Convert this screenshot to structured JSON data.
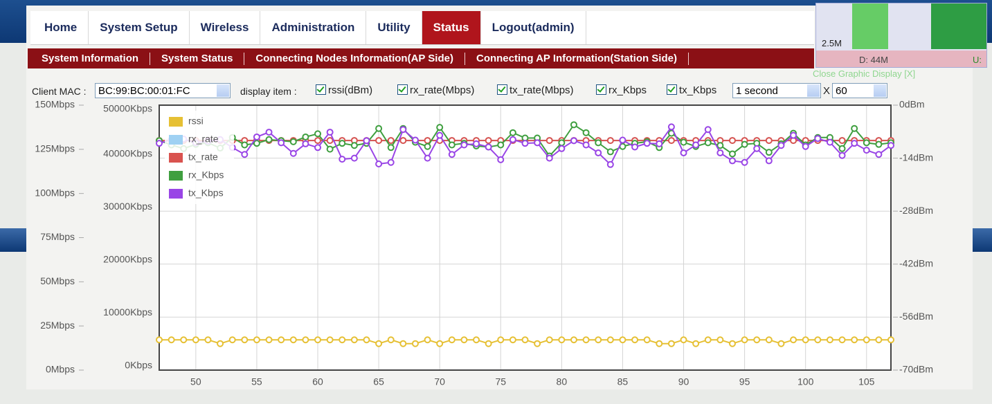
{
  "nav": {
    "tabs": [
      "Home",
      "System Setup",
      "Wireless",
      "Administration",
      "Utility",
      "Status",
      "Logout(admin)"
    ]
  },
  "subnav": {
    "items": [
      "System Information",
      "System Status",
      "Connecting Nodes Information(AP Side)",
      "Connecting AP Information(Station Side)"
    ]
  },
  "widget": {
    "scale": "2.5M",
    "down": "D: 44M",
    "up": "U:",
    "close": "Close Graphic Display [X]"
  },
  "controls": {
    "mac_label": "Client MAC :",
    "mac": "BC:99:BC:00:01:FC",
    "display_label": "display item :",
    "items": [
      "rssi(dBm)",
      "rx_rate(Mbps)",
      "tx_rate(Mbps)",
      "rx_Kbps",
      "tx_Kbps"
    ],
    "interval": "1 second",
    "times": "X",
    "count": "60"
  },
  "chart_data": {
    "type": "line",
    "grid": true,
    "legend": "upper left",
    "x": [
      47,
      48,
      49,
      50,
      51,
      52,
      53,
      54,
      55,
      56,
      57,
      58,
      59,
      60,
      61,
      62,
      63,
      64,
      65,
      66,
      67,
      68,
      69,
      70,
      71,
      72,
      73,
      74,
      75,
      76,
      77,
      78,
      79,
      80,
      81,
      82,
      83,
      84,
      85,
      86,
      87,
      88,
      89,
      90,
      91,
      92,
      93,
      94,
      95,
      96,
      97,
      98,
      99,
      100,
      101,
      102,
      103,
      104,
      105,
      106,
      107
    ],
    "xlim": [
      47,
      107
    ],
    "xticks": [
      50,
      55,
      60,
      65,
      70,
      75,
      80,
      85,
      90,
      95,
      100,
      105
    ],
    "ylim": [
      0,
      150
    ],
    "yticks": [
      {
        "value": 0,
        "label": "0Mbps"
      },
      {
        "value": 25,
        "label": "25Mbps"
      },
      {
        "value": 50,
        "label": "50Mbps"
      },
      {
        "value": 75,
        "label": "75Mbps"
      },
      {
        "value": 100,
        "label": "100Mbps"
      },
      {
        "value": 125,
        "label": "125Mbps"
      },
      {
        "value": 150,
        "label": "150Mbps"
      }
    ],
    "y2lim": [
      0,
      50000
    ],
    "y2ticks": [
      {
        "value": 0,
        "label": "0Kbps"
      },
      {
        "value": 10000,
        "label": "10000Kbps"
      },
      {
        "value": 20000,
        "label": "20000Kbps"
      },
      {
        "value": 30000,
        "label": "30000Kbps"
      },
      {
        "value": 40000,
        "label": "40000Kbps"
      },
      {
        "value": 50000,
        "label": "50000Kbps"
      }
    ],
    "y3lim": [
      -70,
      0
    ],
    "y3ticks": [
      {
        "value": -70,
        "label": "-70dBm"
      },
      {
        "value": -56,
        "label": "-56dBm"
      },
      {
        "value": -42,
        "label": "-42dBm"
      },
      {
        "value": -28,
        "label": "-28dBm"
      },
      {
        "value": -14,
        "label": "-14dBm"
      },
      {
        "value": 0,
        "label": "0dBm"
      }
    ],
    "series": [
      {
        "name": "rssi",
        "color": "#e6c034",
        "axis": "y3",
        "values": [
          -62,
          -62,
          -62,
          -62,
          -62,
          -63,
          -62,
          -62,
          -62,
          -62,
          -62,
          -62,
          -62,
          -62,
          -62,
          -62,
          -62,
          -62,
          -63,
          -62,
          -63,
          -63,
          -62,
          -63,
          -62,
          -62,
          -62,
          -63,
          -62,
          -62,
          -62,
          -63,
          -62,
          -62,
          -62,
          -62,
          -62,
          -62,
          -62,
          -62,
          -62,
          -63,
          -63,
          -62,
          -63,
          -62,
          -62,
          -63,
          -62,
          -62,
          -62,
          -63,
          -62,
          -62,
          -62,
          -62,
          -62,
          -62,
          -62,
          -62,
          -62
        ]
      },
      {
        "name": "rx_rate",
        "color": "#9fd1f3",
        "values": [
          130,
          130,
          130,
          130,
          130,
          130,
          130,
          130,
          130,
          130,
          130,
          130,
          130,
          130,
          130,
          130,
          130,
          130,
          130,
          130,
          130,
          130,
          130,
          130,
          130,
          130,
          130,
          130,
          130,
          130,
          130,
          130,
          130,
          130,
          130,
          130,
          130,
          130,
          130,
          130,
          130,
          130,
          130,
          130,
          130,
          130,
          130,
          130,
          130,
          130,
          130,
          130,
          130,
          130,
          130,
          130,
          130,
          130,
          130,
          130,
          130
        ]
      },
      {
        "name": "tx_rate",
        "color": "#d9534f",
        "values": [
          130,
          130,
          130,
          130,
          130,
          130,
          130,
          130,
          130,
          130,
          130,
          130,
          130,
          130,
          130,
          130,
          130,
          130,
          130,
          130,
          130,
          130,
          130,
          130,
          130,
          130,
          130,
          130,
          130,
          130,
          130,
          130,
          130,
          130,
          130,
          130,
          130,
          130,
          130,
          130,
          130,
          130,
          130,
          130,
          130,
          130,
          130,
          130,
          130,
          130,
          130,
          130,
          130,
          130,
          130,
          130,
          130,
          130,
          130,
          130,
          130
        ]
      },
      {
        "name": "rx_Kbps",
        "color": "#3f9f3f",
        "axis": "y2",
        "values": [
          43300,
          42500,
          41800,
          42600,
          42900,
          41900,
          43900,
          42500,
          42800,
          43500,
          43300,
          43100,
          44000,
          44600,
          41700,
          42800,
          42400,
          42800,
          45600,
          42000,
          45600,
          43000,
          42200,
          45800,
          42500,
          42800,
          42300,
          42100,
          42500,
          44800,
          43800,
          43800,
          40400,
          42900,
          46300,
          44800,
          42900,
          41200,
          42200,
          42800,
          43100,
          42000,
          44700,
          43000,
          42200,
          42900,
          42400,
          40800,
          42600,
          42800,
          41100,
          42700,
          44700,
          42500,
          43900,
          43900,
          41800,
          45600,
          42900,
          42600,
          42900
        ]
      },
      {
        "name": "tx_Kbps",
        "color": "#9945e6",
        "axis": "y2",
        "values": [
          42800,
          43500,
          43600,
          42900,
          43200,
          43500,
          42000,
          40700,
          44000,
          44900,
          42900,
          40900,
          42700,
          42000,
          44900,
          39800,
          40000,
          43300,
          38900,
          39200,
          45400,
          43400,
          40000,
          44300,
          40700,
          42500,
          42700,
          42100,
          39700,
          43500,
          42800,
          42900,
          40000,
          41800,
          43300,
          42500,
          41000,
          38800,
          43400,
          42100,
          42800,
          42700,
          45900,
          41000,
          42500,
          45400,
          41000,
          39500,
          39200,
          41800,
          39500,
          42400,
          44300,
          42200,
          43700,
          43000,
          40500,
          42800,
          41500,
          40700,
          42400
        ]
      }
    ]
  }
}
